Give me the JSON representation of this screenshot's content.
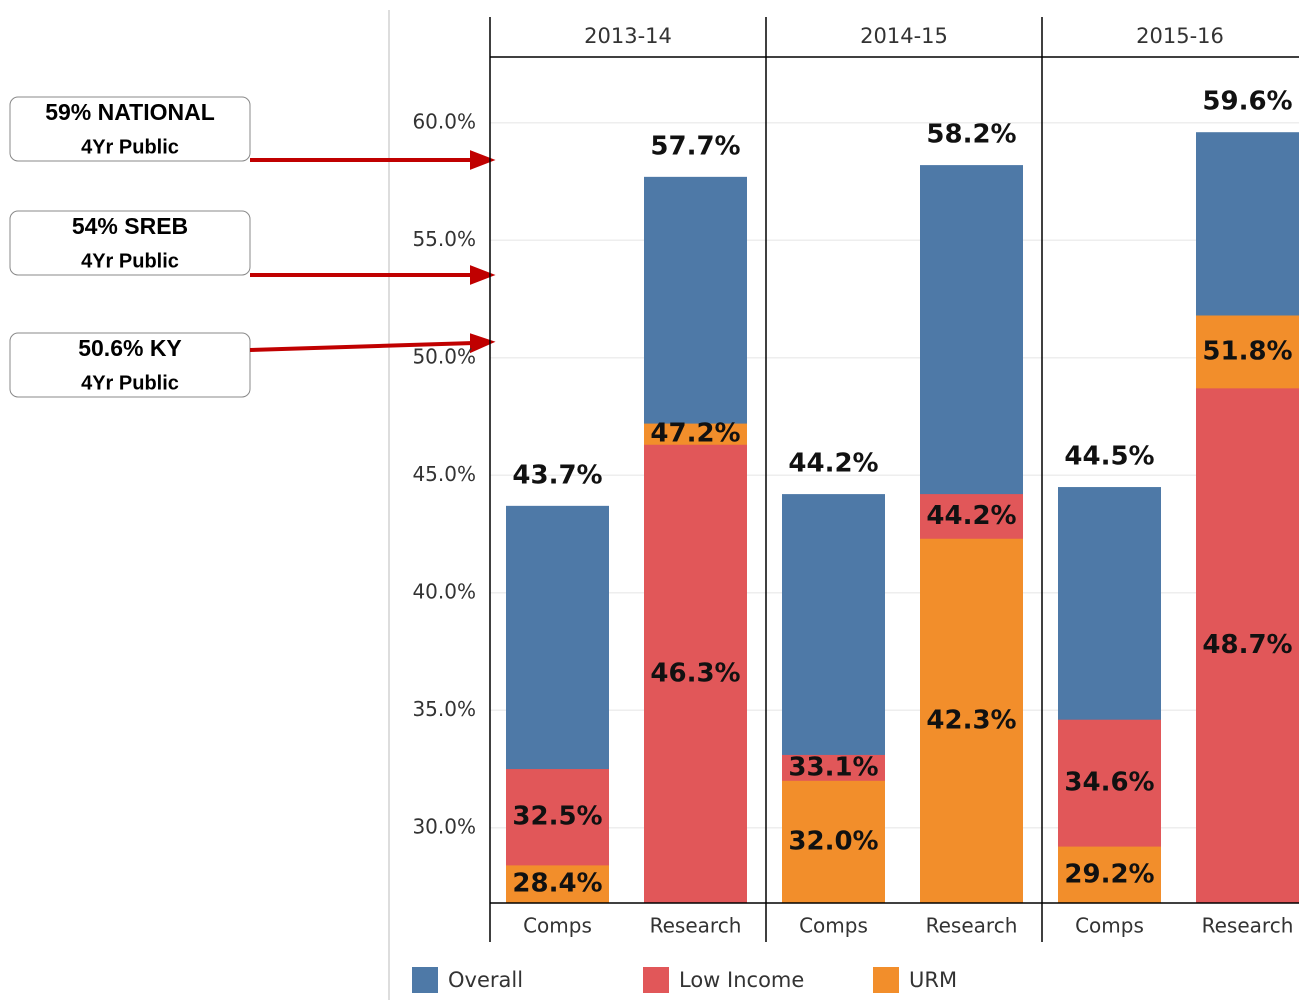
{
  "chart_data": {
    "type": "bar",
    "groups": [
      "2013-14",
      "2014-15",
      "2015-16"
    ],
    "categories": [
      "Comps",
      "Research",
      "Comps",
      "Research",
      "Comps",
      "Research"
    ],
    "series": [
      {
        "name": "Overall",
        "color": "#4e79a7",
        "values": [
          43.7,
          57.7,
          44.2,
          58.2,
          44.5,
          59.6
        ],
        "value_labels": [
          "43.7%",
          "57.7%",
          "44.2%",
          "58.2%",
          "44.5%",
          "59.6%"
        ]
      },
      {
        "name": "Low Income",
        "color": "#e15759",
        "values": [
          32.5,
          46.3,
          33.1,
          44.2,
          34.6,
          48.7
        ],
        "value_labels": [
          "32.5%",
          "46.3%",
          "33.1%",
          "44.2%",
          "34.6%",
          "48.7%"
        ]
      },
      {
        "name": "URM",
        "color": "#f28e2b",
        "values": [
          28.4,
          47.2,
          32.0,
          42.3,
          29.2,
          51.8
        ],
        "value_labels": [
          "28.4%",
          "47.2%",
          "32.0%",
          "42.3%",
          "29.2%",
          "51.8%"
        ]
      }
    ],
    "ylim": [
      26.8,
      62.8
    ],
    "yticks": [
      {
        "value": 30,
        "label": "30.0%"
      },
      {
        "value": 35,
        "label": "35.0%"
      },
      {
        "value": 40,
        "label": "40.0%"
      },
      {
        "value": 45,
        "label": "45.0%"
      },
      {
        "value": 50,
        "label": "50.0%"
      },
      {
        "value": 55,
        "label": "55.0%"
      },
      {
        "value": 60,
        "label": "60.0%"
      }
    ],
    "grid": true,
    "legend": "bottom",
    "annotations": [
      {
        "title": "59% NATIONAL",
        "subtitle": "4Yr Public"
      },
      {
        "title": "54% SREB",
        "subtitle": "4Yr Public"
      },
      {
        "title": "50.6% KY",
        "subtitle": "4Yr Public"
      }
    ]
  }
}
